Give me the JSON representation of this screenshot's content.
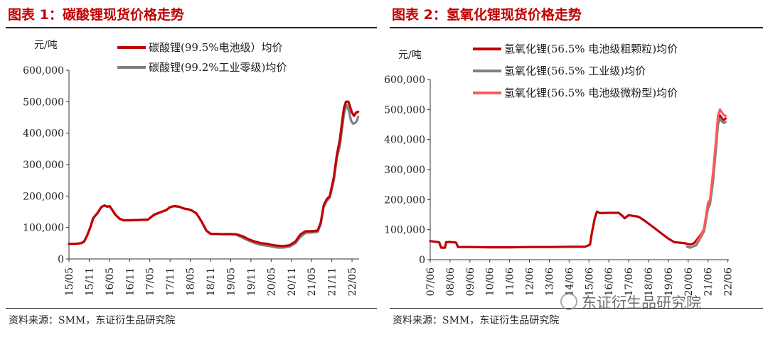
{
  "page": {
    "left_title": "图表 1：碳酸锂现货价格走势",
    "right_title": "图表 2：氢氧化锂现货价格走势",
    "source": "资料来源：SMM，东证衍生品研究院",
    "watermark": "东证衍生品研究院"
  },
  "chart_data": [
    {
      "type": "line",
      "title": "图表 1：碳酸锂现货价格走势",
      "ylabel": "元/吨",
      "ylim": [
        0,
        600000
      ],
      "y_ticks": [
        "0",
        "100,000",
        "200,000",
        "300,000",
        "400,000",
        "500,000",
        "600,000"
      ],
      "x_ticks": [
        "15/05",
        "15/11",
        "16/05",
        "16/11",
        "17/05",
        "17/11",
        "18/05",
        "18/11",
        "19/05",
        "19/11",
        "20/05",
        "20/11",
        "21/05",
        "21/11",
        "22/05"
      ],
      "xlim": [
        0,
        14.35
      ],
      "grid": false,
      "legend": "top-right",
      "series": [
        {
          "name": "碳酸锂(99.5%电池级）均价",
          "color": "#c00000",
          "points": [
            [
              0,
              48000
            ],
            [
              0.3,
              48000
            ],
            [
              0.6,
              50000
            ],
            [
              0.75,
              55000
            ],
            [
              0.9,
              75000
            ],
            [
              1.05,
              100000
            ],
            [
              1.2,
              130000
            ],
            [
              1.4,
              145000
            ],
            [
              1.6,
              165000
            ],
            [
              1.75,
              170000
            ],
            [
              1.9,
              166000
            ],
            [
              2.0,
              168000
            ],
            [
              2.1,
              160000
            ],
            [
              2.3,
              140000
            ],
            [
              2.5,
              128000
            ],
            [
              2.7,
              123000
            ],
            [
              3.0,
              123000
            ],
            [
              3.5,
              124000
            ],
            [
              3.9,
              125000
            ],
            [
              4.2,
              140000
            ],
            [
              4.5,
              148000
            ],
            [
              4.8,
              155000
            ],
            [
              5.0,
              165000
            ],
            [
              5.2,
              168000
            ],
            [
              5.45,
              166000
            ],
            [
              5.7,
              160000
            ],
            [
              5.9,
              158000
            ],
            [
              6.05,
              155000
            ],
            [
              6.3,
              145000
            ],
            [
              6.55,
              120000
            ],
            [
              6.8,
              90000
            ],
            [
              7.0,
              80000
            ],
            [
              7.5,
              79000
            ],
            [
              8.0,
              79000
            ],
            [
              8.3,
              78000
            ],
            [
              8.6,
              72000
            ],
            [
              8.9,
              62000
            ],
            [
              9.2,
              55000
            ],
            [
              9.5,
              50000
            ],
            [
              9.8,
              48000
            ],
            [
              10.0,
              45000
            ],
            [
              10.3,
              42000
            ],
            [
              10.6,
              41000
            ],
            [
              10.9,
              43000
            ],
            [
              11.2,
              55000
            ],
            [
              11.45,
              78000
            ],
            [
              11.7,
              88000
            ],
            [
              12.0,
              88000
            ],
            [
              12.3,
              90000
            ],
            [
              12.45,
              115000
            ],
            [
              12.6,
              170000
            ],
            [
              12.75,
              190000
            ],
            [
              12.9,
              200000
            ],
            [
              13.1,
              260000
            ],
            [
              13.25,
              330000
            ],
            [
              13.4,
              380000
            ],
            [
              13.5,
              430000
            ],
            [
              13.6,
              480000
            ],
            [
              13.7,
              500000
            ],
            [
              13.82,
              500000
            ],
            [
              13.92,
              480000
            ],
            [
              14.0,
              465000
            ],
            [
              14.1,
              455000
            ],
            [
              14.2,
              465000
            ],
            [
              14.3,
              468000
            ]
          ]
        },
        {
          "name": "碳酸锂(99.2%工业零级)均价",
          "color": "#808080",
          "points": [
            [
              8.3,
              76000
            ],
            [
              8.6,
              67000
            ],
            [
              8.9,
              58000
            ],
            [
              9.2,
              50000
            ],
            [
              9.5,
              45000
            ],
            [
              9.8,
              42000
            ],
            [
              10.0,
              40000
            ],
            [
              10.3,
              36000
            ],
            [
              10.6,
              36000
            ],
            [
              10.9,
              39000
            ],
            [
              11.2,
              50000
            ],
            [
              11.45,
              70000
            ],
            [
              11.7,
              83000
            ],
            [
              12.0,
              84000
            ],
            [
              12.3,
              86000
            ],
            [
              12.45,
              110000
            ],
            [
              12.6,
              165000
            ],
            [
              12.75,
              185000
            ],
            [
              12.9,
              195000
            ],
            [
              13.1,
              250000
            ],
            [
              13.25,
              320000
            ],
            [
              13.4,
              360000
            ],
            [
              13.5,
              410000
            ],
            [
              13.6,
              460000
            ],
            [
              13.72,
              490000
            ],
            [
              13.85,
              470000
            ],
            [
              13.95,
              440000
            ],
            [
              14.05,
              430000
            ],
            [
              14.15,
              432000
            ],
            [
              14.25,
              440000
            ],
            [
              14.3,
              452000
            ]
          ]
        }
      ]
    },
    {
      "type": "line",
      "title": "图表 2：氢氧化锂现货价格走势",
      "ylabel": "元/吨",
      "ylim": [
        0,
        600000
      ],
      "y_ticks": [
        "0",
        "100,000",
        "200,000",
        "300,000",
        "400,000",
        "500,000",
        "600,000"
      ],
      "x_ticks": [
        "07/06",
        "08/06",
        "09/06",
        "10/06",
        "11/06",
        "12/06",
        "13/06",
        "14/06",
        "15/06",
        "16/06",
        "17/06",
        "18/06",
        "19/06",
        "20/06",
        "21/06",
        "22/06"
      ],
      "xlim": [
        0,
        15.05
      ],
      "grid": false,
      "legend": "top-right",
      "series": [
        {
          "name": "氢氧化锂(56.5% 电池级粗颗粒)均价",
          "color": "#c00000",
          "points": [
            [
              0,
              62000
            ],
            [
              0.45,
              58000
            ],
            [
              0.55,
              40000
            ],
            [
              0.75,
              40000
            ],
            [
              0.8,
              58000
            ],
            [
              1.0,
              59000
            ],
            [
              1.3,
              57000
            ],
            [
              1.4,
              42000
            ],
            [
              2.0,
              42000
            ],
            [
              3.0,
              41000
            ],
            [
              4.0,
              41000
            ],
            [
              5.0,
              42000
            ],
            [
              6.0,
              42000
            ],
            [
              7.0,
              43000
            ],
            [
              7.8,
              43000
            ],
            [
              8.05,
              50000
            ],
            [
              8.15,
              90000
            ],
            [
              8.3,
              140000
            ],
            [
              8.4,
              160000
            ],
            [
              8.55,
              155000
            ],
            [
              9.0,
              156000
            ],
            [
              9.5,
              156000
            ],
            [
              9.7,
              145000
            ],
            [
              9.8,
              138000
            ],
            [
              10.0,
              148000
            ],
            [
              10.5,
              143000
            ],
            [
              10.8,
              130000
            ],
            [
              11.2,
              110000
            ],
            [
              11.6,
              90000
            ],
            [
              12.0,
              70000
            ],
            [
              12.3,
              58000
            ],
            [
              12.8,
              55000
            ],
            [
              13.1,
              50000
            ],
            [
              13.3,
              55000
            ],
            [
              13.6,
              80000
            ],
            [
              13.8,
              100000
            ],
            [
              14.0,
              180000
            ],
            [
              14.1,
              190000
            ],
            [
              14.25,
              270000
            ],
            [
              14.4,
              380000
            ],
            [
              14.5,
              460000
            ],
            [
              14.6,
              480000
            ],
            [
              14.7,
              470000
            ],
            [
              14.8,
              465000
            ],
            [
              14.88,
              470000
            ]
          ]
        },
        {
          "name": "氢氧化锂(56.5% 工业级)均价",
          "color": "#808080",
          "points": [
            [
              12.95,
              43000
            ],
            [
              13.1,
              40000
            ],
            [
              13.4,
              48000
            ],
            [
              13.6,
              70000
            ],
            [
              13.8,
              95000
            ],
            [
              14.0,
              170000
            ],
            [
              14.1,
              185000
            ],
            [
              14.25,
              260000
            ],
            [
              14.4,
              370000
            ],
            [
              14.5,
              450000
            ],
            [
              14.6,
              470000
            ],
            [
              14.7,
              460000
            ],
            [
              14.8,
              455000
            ],
            [
              14.88,
              458000
            ]
          ]
        },
        {
          "name": "氢氧化锂(56.5% 电池级微粉型)均价",
          "color": "#ff5a5a",
          "points": [
            [
              13.45,
              60000
            ],
            [
              13.6,
              75000
            ],
            [
              13.8,
              105000
            ],
            [
              14.0,
              190000
            ],
            [
              14.1,
              200000
            ],
            [
              14.25,
              290000
            ],
            [
              14.4,
              400000
            ],
            [
              14.5,
              480000
            ],
            [
              14.6,
              500000
            ],
            [
              14.7,
              490000
            ],
            [
              14.8,
              482000
            ],
            [
              14.88,
              478000
            ]
          ]
        }
      ]
    }
  ]
}
